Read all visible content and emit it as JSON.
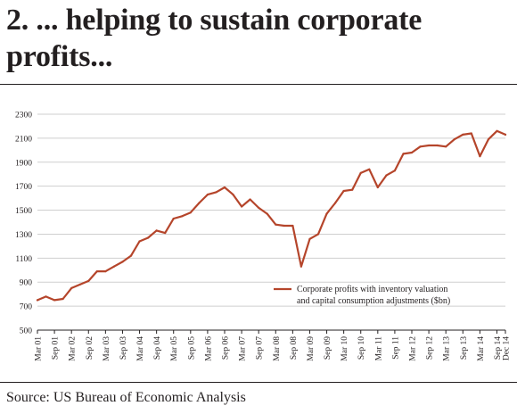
{
  "title": "2. ... helping to sustain corporate profits...",
  "source": "Source: US Bureau of Economic Analysis",
  "colors": {
    "series": "#b5452b",
    "grid": "#cfcfcf",
    "text": "#231f20"
  },
  "chart_data": {
    "type": "line",
    "xlabel": "",
    "ylabel": "",
    "ylim": [
      500,
      2300
    ],
    "yticks": [
      500,
      700,
      900,
      1100,
      1300,
      1500,
      1700,
      1900,
      2100,
      2300
    ],
    "grid": "horizontal",
    "legend_placement": "right, middle",
    "x_tick_labels": [
      "Mar 01",
      "Sep 01",
      "Mar 02",
      "Sep 02",
      "Mar 03",
      "Sep 03",
      "Mar 04",
      "Sep 04",
      "Mar 05",
      "Sep 05",
      "Mar 06",
      "Sep 06",
      "Mar 07",
      "Sep 07",
      "Mar 08",
      "Sep 08",
      "Mar 09",
      "Sep 09",
      "Mar 10",
      "Sep 10",
      "Mar 11",
      "Sep 11",
      "Mar 12",
      "Sep 12",
      "Mar 13",
      "Sep 13",
      "Mar 14",
      "Sep 14",
      "Dec 14"
    ],
    "series": [
      {
        "name": "Corporate profits with inventory valuation and capital consumption adjustments ($bn)",
        "line1": "Corporate profits with inventory valuation",
        "line2": "and capital consumption adjustments ($bn)",
        "x": [
          "Mar 01",
          "Jun 01",
          "Sep 01",
          "Dec 01",
          "Mar 02",
          "Jun 02",
          "Sep 02",
          "Dec 02",
          "Mar 03",
          "Jun 03",
          "Sep 03",
          "Dec 03",
          "Mar 04",
          "Jun 04",
          "Sep 04",
          "Dec 04",
          "Mar 05",
          "Jun 05",
          "Sep 05",
          "Dec 05",
          "Mar 06",
          "Jun 06",
          "Sep 06",
          "Dec 06",
          "Mar 07",
          "Jun 07",
          "Sep 07",
          "Dec 07",
          "Mar 08",
          "Jun 08",
          "Sep 08",
          "Dec 08",
          "Mar 09",
          "Jun 09",
          "Sep 09",
          "Dec 09",
          "Mar 10",
          "Jun 10",
          "Sep 10",
          "Dec 10",
          "Mar 11",
          "Jun 11",
          "Sep 11",
          "Dec 11",
          "Mar 12",
          "Jun 12",
          "Sep 12",
          "Dec 12",
          "Mar 13",
          "Jun 13",
          "Sep 13",
          "Dec 13",
          "Mar 14",
          "Jun 14",
          "Sep 14",
          "Dec 14"
        ],
        "values": [
          750,
          780,
          750,
          760,
          850,
          880,
          910,
          990,
          990,
          1030,
          1070,
          1120,
          1240,
          1270,
          1330,
          1310,
          1430,
          1450,
          1480,
          1560,
          1630,
          1650,
          1690,
          1630,
          1530,
          1590,
          1520,
          1470,
          1380,
          1370,
          1370,
          1030,
          1260,
          1300,
          1470,
          1560,
          1660,
          1670,
          1810,
          1840,
          1690,
          1790,
          1830,
          1970,
          1980,
          2030,
          2040,
          2040,
          2030,
          2090,
          2130,
          2140,
          1950,
          2090,
          2160,
          2130
        ]
      }
    ]
  }
}
